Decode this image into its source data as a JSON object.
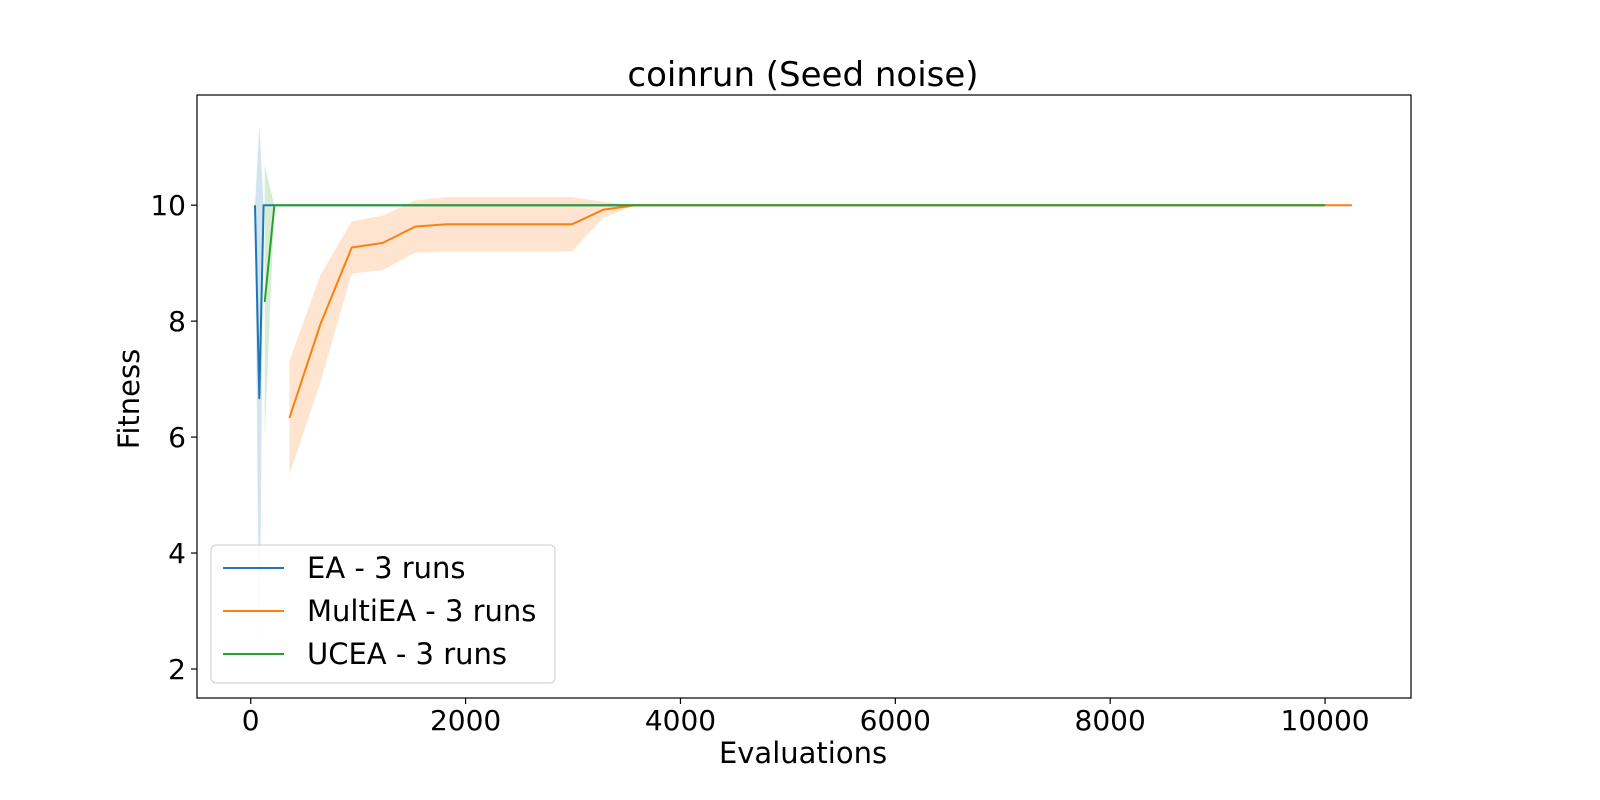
{
  "chart_data": {
    "type": "line",
    "title": "coinrun (Seed noise)",
    "xlabel": "Evaluations",
    "ylabel": "Fitness",
    "xlim": [
      -500,
      10800
    ],
    "ylim": [
      1.5,
      11.9
    ],
    "xticks": [
      0,
      2000,
      4000,
      6000,
      8000,
      10000
    ],
    "yticks": [
      2,
      4,
      6,
      8,
      10
    ],
    "xtick_labels": [
      "0",
      "2000",
      "4000",
      "6000",
      "8000",
      "10000"
    ],
    "ytick_labels": [
      "2",
      "4",
      "6",
      "8",
      "10"
    ],
    "grid": false,
    "legend_position": "lower-left",
    "series": [
      {
        "name": "EA - 3 runs",
        "color": "#1f77b4",
        "x": [
          40,
          80,
          120,
          160,
          200,
          10000
        ],
        "y": [
          10,
          6.67,
          10,
          10,
          10,
          10
        ],
        "lower": [
          10,
          1.95,
          10,
          10,
          10,
          10
        ],
        "upper": [
          10,
          11.38,
          10,
          10,
          10,
          10
        ]
      },
      {
        "name": "MultiEA - 3 runs",
        "color": "#ff7f0e",
        "x": [
          360,
          650,
          940,
          1230,
          1530,
          1820,
          2110,
          2400,
          2700,
          2990,
          3280,
          3580,
          10250
        ],
        "y": [
          6.33,
          7.95,
          9.27,
          9.35,
          9.63,
          9.67,
          9.67,
          9.67,
          9.67,
          9.67,
          9.92,
          10,
          10
        ],
        "lower": [
          5.35,
          6.95,
          8.82,
          8.88,
          9.18,
          9.2,
          9.2,
          9.2,
          9.2,
          9.2,
          9.78,
          10,
          10
        ],
        "upper": [
          7.31,
          8.8,
          9.72,
          9.82,
          10.08,
          10.14,
          10.14,
          10.14,
          10.14,
          10.14,
          10.06,
          10,
          10
        ]
      },
      {
        "name": "UCEA - 3 runs",
        "color": "#2ca02c",
        "x": [
          130,
          220,
          10000
        ],
        "y": [
          8.33,
          10,
          10
        ],
        "lower": [
          5.98,
          10,
          10
        ],
        "upper": [
          10.69,
          10,
          10
        ]
      }
    ]
  }
}
